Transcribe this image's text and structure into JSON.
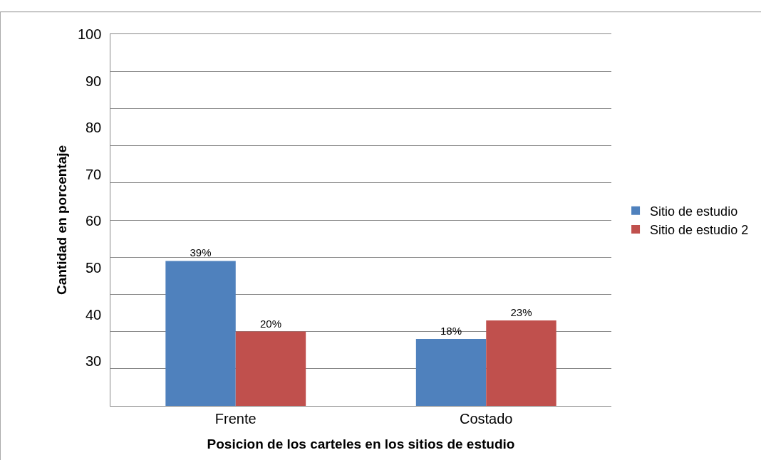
{
  "chart_data": {
    "type": "bar",
    "categories": [
      "Frente",
      "Costado"
    ],
    "series": [
      {
        "name": "Sitio de estudio",
        "color": "#4f81bd",
        "values": [
          39,
          18
        ],
        "value_labels": [
          "39%",
          "18%"
        ]
      },
      {
        "name": "Sitio de estudio 2",
        "color": "#c0504d",
        "values": [
          20,
          23
        ],
        "value_labels": [
          "20%",
          "23%"
        ]
      }
    ],
    "ylabel": "Cantidad en porcentaje",
    "xlabel": "Posicion de los carteles en los sitios de estudio",
    "ylim": [
      0,
      100
    ],
    "annotations": [
      "100",
      "90",
      "80",
      "70",
      "60",
      "50",
      "40",
      "30"
    ],
    "tick_labels": "x",
    "grid": "y",
    "legend": "right"
  }
}
